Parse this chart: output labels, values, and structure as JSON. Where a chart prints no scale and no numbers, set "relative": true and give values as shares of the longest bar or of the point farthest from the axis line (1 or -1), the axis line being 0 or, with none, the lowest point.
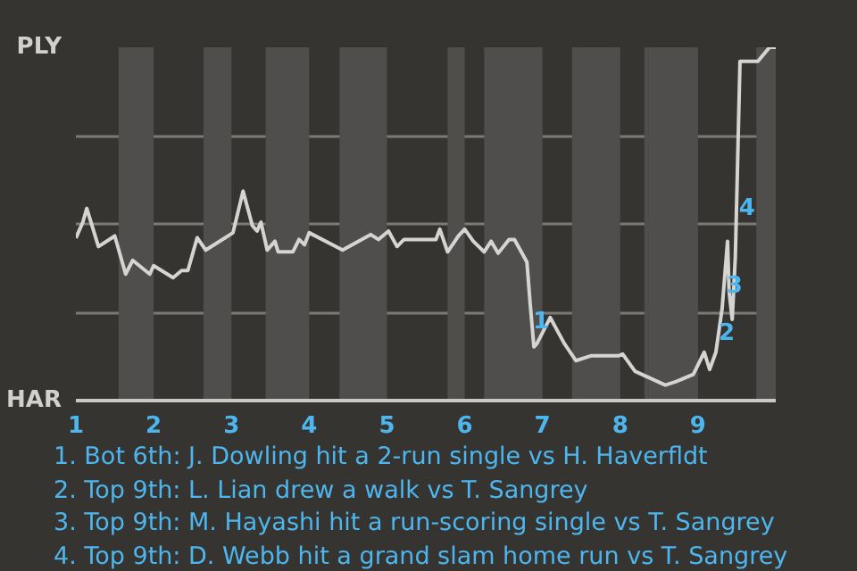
{
  "chart_data": {
    "type": "line",
    "relative": true,
    "x": [
      1.0,
      1.09,
      1.14,
      1.29,
      1.5,
      1.64,
      1.73,
      1.95,
      2.0,
      2.25,
      2.36,
      2.44,
      2.56,
      2.67,
      3.02,
      3.15,
      3.27,
      3.33,
      3.38,
      3.46,
      3.56,
      3.6,
      3.79,
      3.87,
      3.94,
      4.0,
      4.43,
      4.79,
      4.89,
      5.02,
      5.13,
      5.22,
      5.63,
      5.68,
      5.78,
      5.92,
      6.0,
      6.11,
      6.25,
      6.34,
      6.43,
      6.57,
      6.64,
      6.8,
      6.84,
      6.89,
      6.93,
      7.1,
      7.28,
      7.43,
      7.63,
      7.98,
      8.03,
      8.19,
      8.58,
      8.72,
      8.94,
      9.08,
      9.15,
      9.23,
      9.31,
      9.38,
      9.4,
      9.44,
      9.48,
      9.5,
      9.54,
      9.77,
      9.92,
      10.0
    ],
    "series": [
      {
        "color": "#d4d4d2",
        "values": [
          0.46,
          0.505,
          0.544,
          0.436,
          0.466,
          0.358,
          0.397,
          0.358,
          0.382,
          0.348,
          0.368,
          0.368,
          0.461,
          0.426,
          0.475,
          0.593,
          0.495,
          0.48,
          0.505,
          0.426,
          0.451,
          0.421,
          0.421,
          0.456,
          0.441,
          0.475,
          0.426,
          0.47,
          0.456,
          0.48,
          0.436,
          0.456,
          0.456,
          0.485,
          0.421,
          0.466,
          0.485,
          0.451,
          0.421,
          0.451,
          0.417,
          0.456,
          0.456,
          0.392,
          0.279,
          0.152,
          0.162,
          0.235,
          0.162,
          0.113,
          0.127,
          0.127,
          0.132,
          0.083,
          0.044,
          0.054,
          0.074,
          0.137,
          0.088,
          0.137,
          0.26,
          0.451,
          0.309,
          0.23,
          0.407,
          0.588,
          0.96,
          0.96,
          1.0,
          1.0
        ]
      }
    ],
    "xlim": [
      1,
      10
    ],
    "xticks": [
      1,
      2,
      3,
      4,
      5,
      6,
      7,
      8,
      9
    ],
    "grid": "y",
    "bands": [
      {
        "axis": "x",
        "from": 1.55,
        "to": 2,
        "color": "#4f4e4c"
      },
      {
        "axis": "x",
        "from": 2.64,
        "to": 3,
        "color": "#4f4e4c"
      },
      {
        "axis": "x",
        "from": 3.44,
        "to": 4,
        "color": "#4f4e4c"
      },
      {
        "axis": "x",
        "from": 4.39,
        "to": 5,
        "color": "#4f4e4c"
      },
      {
        "axis": "x",
        "from": 5.78,
        "to": 6,
        "color": "#4f4e4c"
      },
      {
        "axis": "x",
        "from": 6.25,
        "to": 7,
        "color": "#4f4e4c"
      },
      {
        "axis": "x",
        "from": 7.38,
        "to": 8,
        "color": "#4f4e4c"
      },
      {
        "axis": "x",
        "from": 8.31,
        "to": 9,
        "color": "#4f4e4c"
      },
      {
        "axis": "x",
        "from": 9.75,
        "to": 10,
        "color": "#4f4e4c"
      }
    ],
    "annotations": [
      "PLY",
      "HAR",
      {
        "text": "1",
        "x": 6.98,
        "y": 0.23
      },
      {
        "text": "2",
        "x": 9.37,
        "y": 0.196
      },
      {
        "text": "3",
        "x": 9.47,
        "y": 0.33
      },
      {
        "text": "4",
        "x": 9.63,
        "y": 0.55
      },
      "1. Bot 6th: J. Dowling hit a 2-run single vs H. Haverfldt",
      "2. Top 9th: L. Lian drew a walk vs T. Sangrey",
      "3. Top 9th: M. Hayashi hit a run-scoring single vs T. Sangrey",
      "4. Top 9th: D. Webb hit a grand slam home run vs T. Sangrey"
    ]
  }
}
